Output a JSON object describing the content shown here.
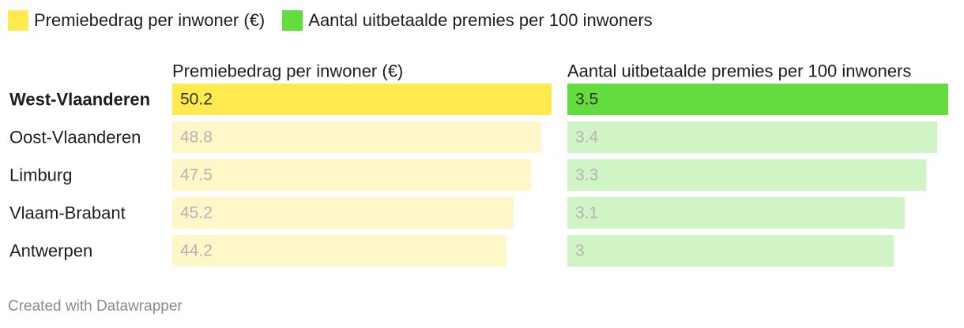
{
  "legend": {
    "items": [
      {
        "label": "Premiebedrag per inwoner (€)",
        "color": "#ffeb4f"
      },
      {
        "label": "Aantal uitbetaalde premies per 100 inwoners",
        "color": "#63dc3d"
      }
    ]
  },
  "chart_data": {
    "type": "bar",
    "orientation": "horizontal",
    "highlighted_category": "West-Vlaanderen",
    "categories": [
      "West-Vlaanderen",
      "Oost-Vlaanderen",
      "Limburg",
      "Vlaam-Brabant",
      "Antwerpen"
    ],
    "series": [
      {
        "name": "Premiebedrag per inwoner (€)",
        "values": [
          50.2,
          48.8,
          47.5,
          45.2,
          44.2
        ],
        "value_labels": [
          "50.2",
          "48.8",
          "47.5",
          "45.2",
          "44.2"
        ],
        "color": "#ffeb4f",
        "muted_color": "#fff7c7",
        "xlim": [
          0,
          50.2
        ]
      },
      {
        "name": "Aantal uitbetaalde premies per 100 inwoners",
        "values": [
          3.5,
          3.4,
          3.3,
          3.1,
          3.0
        ],
        "value_labels": [
          "3.5",
          "3.4",
          "3.3",
          "3.1",
          "3"
        ],
        "color": "#63dc3d",
        "muted_color": "#d0f4c5",
        "xlim": [
          0,
          3.5
        ]
      }
    ],
    "grid": false,
    "legend_position": "top-left"
  },
  "footer": {
    "credit": "Created with Datawrapper"
  },
  "colors": {
    "label_text": "#1d1d1d",
    "highlight_value_text": "#333333",
    "muted_value_text": "#b4b4b4",
    "footer_text": "#8a8a8a"
  }
}
